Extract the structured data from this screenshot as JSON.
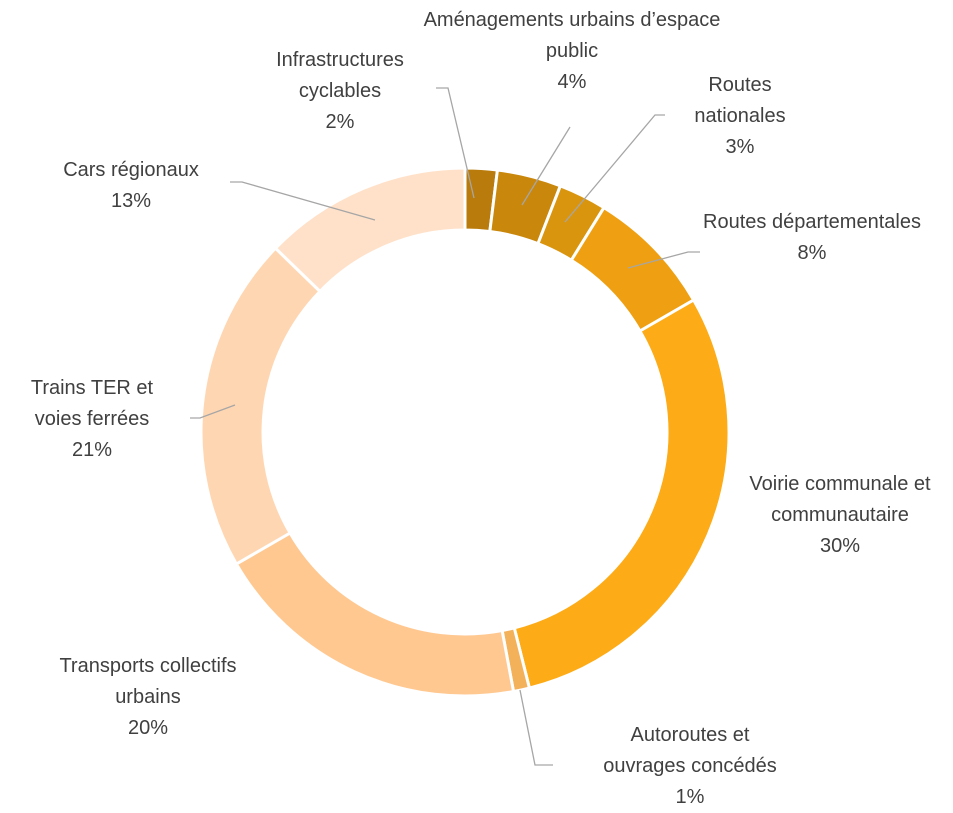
{
  "chart_data": {
    "type": "donut",
    "categories": [
      "Infrastructures cyclables",
      "Aménagements urbains d’espace public",
      "Routes nationales",
      "Routes départementales",
      "Voirie communale et communautaire",
      "Autoroutes et ouvrages concédés",
      "Transports collectifs urbains",
      "Trains TER et voies ferrées",
      "Cars régionaux"
    ],
    "values": [
      2,
      4,
      3,
      8,
      30,
      1,
      20,
      21,
      13
    ],
    "value_labels": [
      "2%",
      "4%",
      "3%",
      "8%",
      "30%",
      "1%",
      "20%",
      "21%",
      "13%"
    ],
    "colors": [
      "#b97b0b",
      "#c9870c",
      "#da950f",
      "#efa012",
      "#fdab16",
      "#f3b25a",
      "#ffc891",
      "#ffd6b2",
      "#ffe1c9"
    ]
  }
}
